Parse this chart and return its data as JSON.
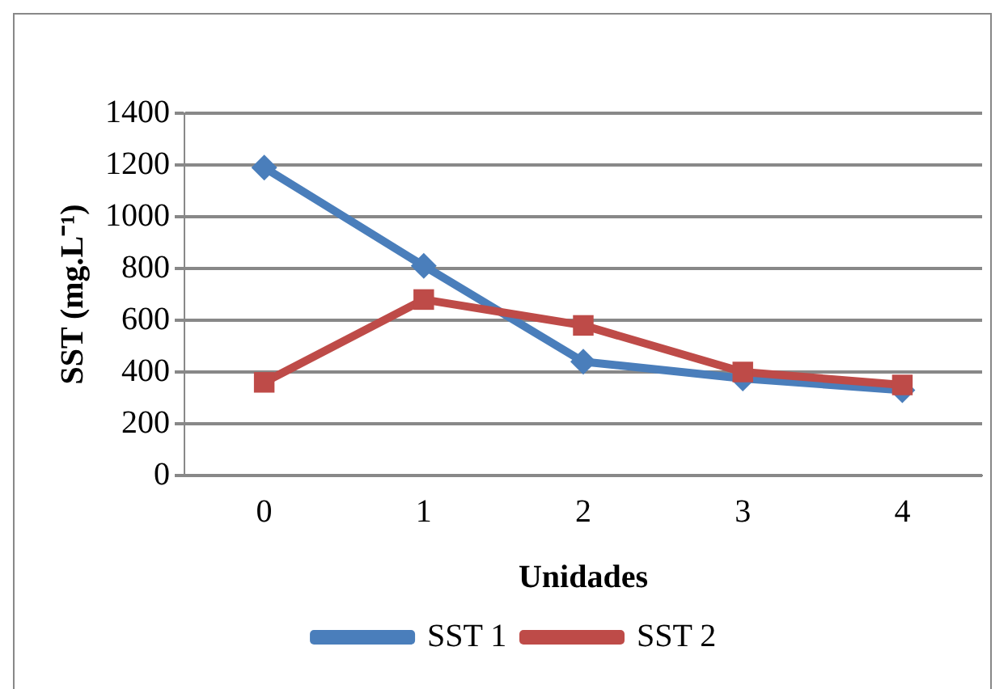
{
  "chart_data": {
    "type": "line",
    "xlabel": "Unidades",
    "ylabel": "SST (mg.L⁻¹)",
    "categories": [
      "0",
      "1",
      "2",
      "3",
      "4"
    ],
    "series": [
      {
        "name": "SST 1",
        "color": "#4a7ebb",
        "marker": "diamond",
        "values": [
          1190,
          810,
          440,
          375,
          330
        ]
      },
      {
        "name": "SST 2",
        "color": "#be4b48",
        "marker": "square",
        "values": [
          360,
          680,
          580,
          400,
          350
        ]
      }
    ],
    "ylim": [
      0,
      1400
    ],
    "yticks": [
      0,
      200,
      400,
      600,
      800,
      1000,
      1200,
      1400
    ],
    "grid": "y",
    "legend": "bottom",
    "line_style": "solid"
  }
}
